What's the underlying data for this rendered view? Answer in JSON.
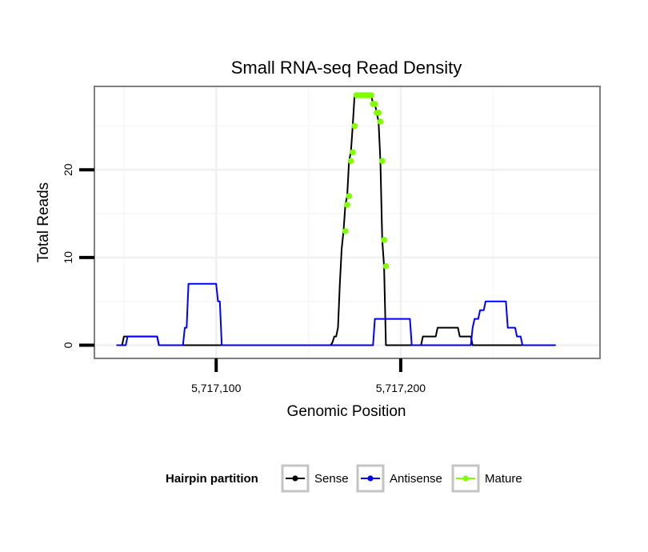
{
  "chart_data": {
    "type": "line",
    "title": "Small RNA-seq Read Density",
    "xlabel": "Genomic Position",
    "ylabel": "Total Reads",
    "xlim": [
      5717034,
      5717308
    ],
    "ylim": [
      -1.5,
      29.5
    ],
    "xticks": [
      {
        "value": 5717100,
        "label": "5,717,100"
      },
      {
        "value": 5717200,
        "label": "5,717,200"
      }
    ],
    "yticks": [
      {
        "value": 0,
        "label": "0"
      },
      {
        "value": 10,
        "label": "10"
      },
      {
        "value": 20,
        "label": "20"
      }
    ],
    "grid": true,
    "legend": {
      "title": "Hairpin partition",
      "position": "bottom",
      "entries": [
        {
          "name": "Sense",
          "color": "#000000"
        },
        {
          "name": "Antisense",
          "color": "#0000ff"
        },
        {
          "name": "Mature",
          "color": "#7fff00"
        }
      ]
    },
    "series": [
      {
        "name": "Sense",
        "color": "#000000",
        "style": "line",
        "points": [
          [
            5717046,
            0
          ],
          [
            5717049,
            0
          ],
          [
            5717050,
            1
          ],
          [
            5717054,
            1
          ],
          [
            5717055,
            1
          ],
          [
            5717066,
            1
          ],
          [
            5717067,
            1
          ],
          [
            5717068,
            1
          ],
          [
            5717069,
            0
          ],
          [
            5717100,
            0
          ],
          [
            5717140,
            0
          ],
          [
            5717162,
            0
          ],
          [
            5717163,
            0.3
          ],
          [
            5717164,
            1
          ],
          [
            5717165,
            1
          ],
          [
            5717166,
            2
          ],
          [
            5717167,
            7
          ],
          [
            5717168,
            11
          ],
          [
            5717169,
            13
          ],
          [
            5717170,
            16
          ],
          [
            5717171,
            17
          ],
          [
            5717172,
            21
          ],
          [
            5717173,
            22
          ],
          [
            5717174,
            25
          ],
          [
            5717175,
            28.5
          ],
          [
            5717176,
            28.5
          ],
          [
            5717180,
            28.5
          ],
          [
            5717184,
            28.5
          ],
          [
            5717185,
            27.5
          ],
          [
            5717186,
            27.5
          ],
          [
            5717187,
            26.5
          ],
          [
            5717188,
            25.5
          ],
          [
            5717189,
            21
          ],
          [
            5717190,
            12
          ],
          [
            5717191,
            9
          ],
          [
            5717192,
            0
          ],
          [
            5717210,
            0
          ],
          [
            5717211,
            0
          ],
          [
            5717212,
            1
          ],
          [
            5717213,
            1
          ],
          [
            5717219,
            1
          ],
          [
            5717220,
            2
          ],
          [
            5717231,
            2
          ],
          [
            5717232,
            1
          ],
          [
            5717236,
            1
          ],
          [
            5717237,
            1
          ],
          [
            5717238,
            1
          ],
          [
            5717239,
            0
          ],
          [
            5717260,
            0
          ],
          [
            5717284,
            0
          ]
        ]
      },
      {
        "name": "Antisense",
        "color": "#0000ff",
        "style": "line",
        "points": [
          [
            5717046,
            0
          ],
          [
            5717051,
            0
          ],
          [
            5717052,
            1
          ],
          [
            5717054,
            1
          ],
          [
            5717066,
            1
          ],
          [
            5717067,
            1
          ],
          [
            5717068,
            1
          ],
          [
            5717069,
            0
          ],
          [
            5717082,
            0
          ],
          [
            5717083,
            2
          ],
          [
            5717084,
            2
          ],
          [
            5717085,
            7
          ],
          [
            5717086,
            7
          ],
          [
            5717100,
            7
          ],
          [
            5717101,
            5
          ],
          [
            5717102,
            5
          ],
          [
            5717103,
            0
          ],
          [
            5717120,
            0
          ],
          [
            5717160,
            0
          ],
          [
            5717185,
            0
          ],
          [
            5717186,
            3
          ],
          [
            5717187,
            3
          ],
          [
            5717205,
            3
          ],
          [
            5717206,
            0
          ],
          [
            5717220,
            0
          ],
          [
            5717238,
            0
          ],
          [
            5717239,
            2
          ],
          [
            5717240,
            3
          ],
          [
            5717242,
            3
          ],
          [
            5717243,
            4
          ],
          [
            5717245,
            4
          ],
          [
            5717246,
            5
          ],
          [
            5717257,
            5
          ],
          [
            5717258,
            2
          ],
          [
            5717262,
            2
          ],
          [
            5717263,
            1
          ],
          [
            5717264,
            1
          ],
          [
            5717265,
            1
          ],
          [
            5717266,
            0
          ],
          [
            5717284,
            0
          ]
        ]
      },
      {
        "name": "Mature",
        "color": "#7fff00",
        "style": "points",
        "points": [
          [
            5717170,
            13
          ],
          [
            5717171,
            16
          ],
          [
            5717172,
            17
          ],
          [
            5717173,
            21
          ],
          [
            5717174,
            22
          ],
          [
            5717175,
            25
          ],
          [
            5717176,
            28.5
          ],
          [
            5717177,
            28.5
          ],
          [
            5717178,
            28.5
          ],
          [
            5717179,
            28.5
          ],
          [
            5717180,
            28.5
          ],
          [
            5717181,
            28.5
          ],
          [
            5717182,
            28.5
          ],
          [
            5717183,
            28.5
          ],
          [
            5717184,
            28.5
          ],
          [
            5717185,
            27.5
          ],
          [
            5717186,
            27.5
          ],
          [
            5717187,
            26.5
          ],
          [
            5717188,
            26.5
          ],
          [
            5717189,
            25.5
          ],
          [
            5717190,
            21
          ],
          [
            5717191,
            12
          ],
          [
            5717192,
            9
          ]
        ]
      }
    ]
  }
}
